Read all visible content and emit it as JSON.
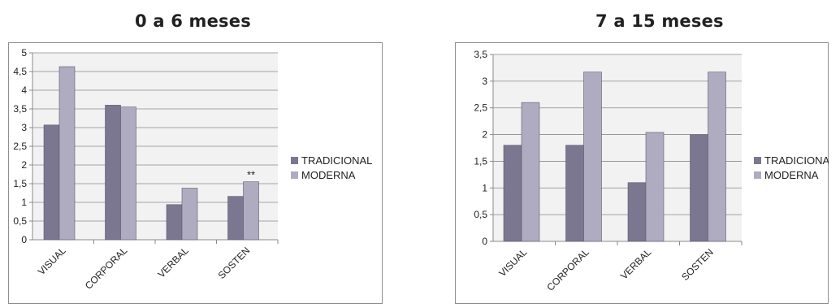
{
  "panels": [
    {
      "title": "0 a 6 meses",
      "legend": [
        "TRADICIONAL",
        "MODERNA"
      ],
      "annotation": "**"
    },
    {
      "title": "7 a 15 meses",
      "legend": [
        "TRADICIONAL",
        "MODERNA"
      ],
      "annotation": ""
    }
  ],
  "colors": {
    "tradicional": "#7c7790",
    "moderna": "#afabc0",
    "plot_bg": "#f2f2f2",
    "grid": "#8a8a8a"
  },
  "chart_data": [
    {
      "type": "bar",
      "title": "0 a 6 meses",
      "categories": [
        "VISUAL",
        "CORPORAL",
        "VERBAL",
        "SOSTEN"
      ],
      "series": [
        {
          "name": "TRADICIONAL",
          "values": [
            3.07,
            3.6,
            0.94,
            1.16
          ]
        },
        {
          "name": "MODERNA",
          "values": [
            4.63,
            3.55,
            1.38,
            1.55
          ]
        }
      ],
      "ylim": [
        0,
        5
      ],
      "yticks": [
        "0",
        "0,5",
        "1",
        "1,5",
        "2",
        "2,5",
        "3",
        "3,5",
        "4",
        "4,5",
        "5"
      ],
      "xlabel": "",
      "ylabel": "",
      "grid": true,
      "legend_position": "right",
      "annotations": [
        {
          "category": "SOSTEN",
          "series": "MODERNA",
          "text": "**"
        }
      ]
    },
    {
      "type": "bar",
      "title": "7 a 15 meses",
      "categories": [
        "VISUAL",
        "CORPORAL",
        "VERBAL",
        "SOSTEN"
      ],
      "series": [
        {
          "name": "TRADICIONAL",
          "values": [
            1.8,
            1.8,
            1.1,
            2.0
          ]
        },
        {
          "name": "MODERNA",
          "values": [
            2.6,
            3.17,
            2.04,
            3.17
          ]
        }
      ],
      "ylim": [
        0,
        3.5
      ],
      "yticks": [
        "0",
        "0,5",
        "1",
        "1,5",
        "2",
        "2,5",
        "3",
        "3,5"
      ],
      "xlabel": "",
      "ylabel": "",
      "grid": true,
      "legend_position": "right",
      "annotations": []
    }
  ]
}
